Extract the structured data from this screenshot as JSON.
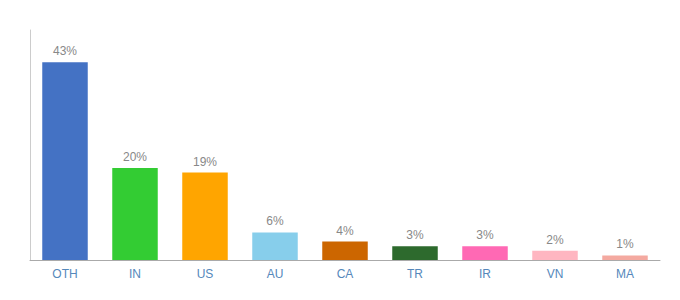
{
  "chart_data": {
    "type": "bar",
    "categories": [
      "OTH",
      "IN",
      "US",
      "AU",
      "CA",
      "TR",
      "IR",
      "VN",
      "MA"
    ],
    "values": [
      43,
      20,
      19,
      6,
      4,
      3,
      3,
      2,
      1
    ],
    "value_labels": [
      "43%",
      "20%",
      "19%",
      "6%",
      "4%",
      "3%",
      "3%",
      "2%",
      "1%"
    ],
    "colors": [
      "#4472C4",
      "#33CC33",
      "#FFA500",
      "#87CEEB",
      "#CC6600",
      "#2D6A2D",
      "#FF69B4",
      "#FFB6C1",
      "#F4A9A0"
    ],
    "ylim": [
      0,
      50
    ],
    "data_labels": true,
    "tick_labels": "x",
    "grid": false
  }
}
